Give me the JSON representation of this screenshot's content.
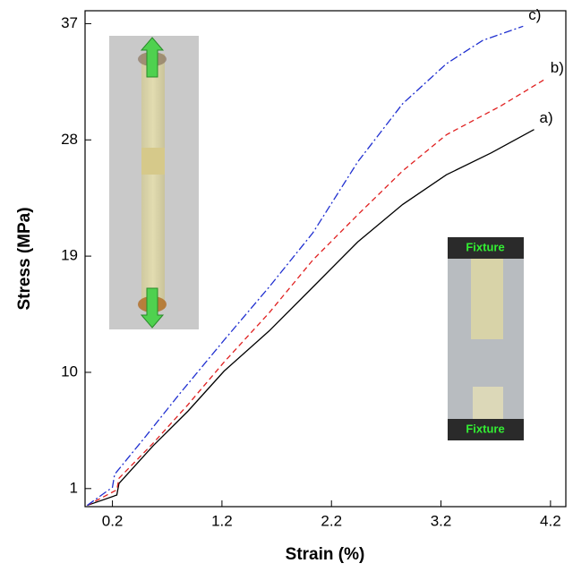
{
  "chart_data": {
    "type": "line",
    "x_label": "Strain (%)",
    "y_label": "Stress (MPa)",
    "xlim": [
      -0.05,
      4.34
    ],
    "xticks": [
      0.2,
      1.2,
      2.2,
      3.2,
      4.2
    ],
    "ylim": [
      -0.4,
      38
    ],
    "yticks": [
      1,
      10,
      19,
      28,
      37
    ],
    "series": [
      {
        "name": "a)",
        "color": "#000000",
        "linestyle": "solid",
        "x": [
          -0.03,
          0.24,
          0.26,
          0.57,
          0.89,
          1.22,
          1.63,
          2.03,
          2.44,
          2.85,
          3.25,
          3.66,
          4.05
        ],
        "values": [
          -0.3,
          0.5,
          1.4,
          4.3,
          7.0,
          10.1,
          13.2,
          16.6,
          20.1,
          23.0,
          25.3,
          27.0,
          28.8
        ]
      },
      {
        "name": "b)",
        "color": "#e02020",
        "linestyle": "dashed",
        "x": [
          -0.03,
          0.24,
          0.26,
          0.57,
          0.89,
          1.22,
          1.63,
          2.03,
          2.44,
          2.85,
          3.25,
          3.74,
          4.15
        ],
        "values": [
          -0.3,
          0.9,
          1.8,
          4.5,
          7.5,
          10.8,
          14.6,
          18.7,
          22.2,
          25.6,
          28.4,
          30.6,
          32.7
        ]
      },
      {
        "name": "c)",
        "color": "#1f2fd0",
        "linestyle": "dashdot",
        "x": [
          -0.03,
          0.2,
          0.22,
          0.49,
          0.81,
          1.22,
          1.63,
          2.03,
          2.44,
          2.85,
          3.25,
          3.58,
          3.95
        ],
        "values": [
          -0.3,
          1.1,
          2.1,
          4.9,
          8.3,
          12.5,
          16.6,
          20.8,
          26.3,
          30.8,
          33.9,
          35.7,
          36.8
        ]
      }
    ],
    "inset_labels": [
      "Fixture",
      "Fixture"
    ]
  }
}
